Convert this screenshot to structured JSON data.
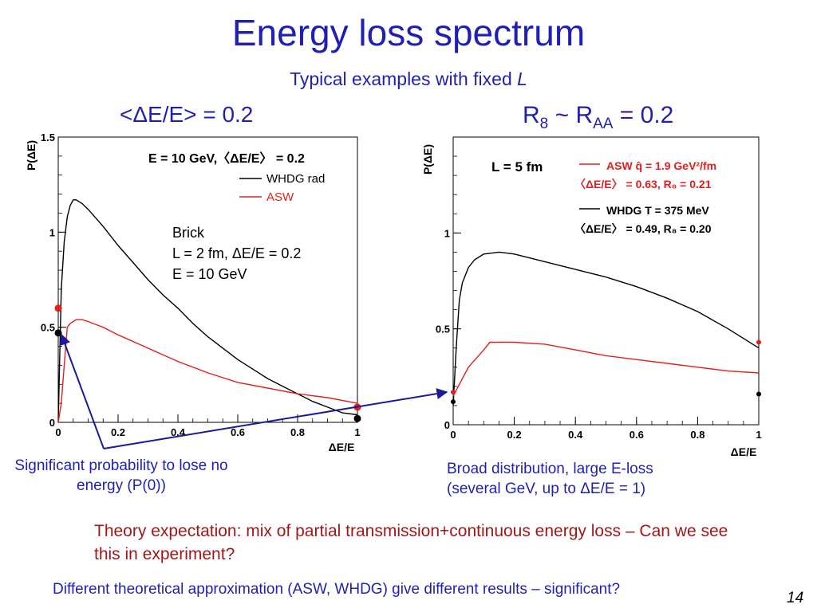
{
  "slide": {
    "title": "Energy loss spectrum",
    "subtitle_text": "Typical examples with fixed ",
    "subtitle_italic": "L",
    "left_heading": "<ΔE/E> = 0.2",
    "right_heading_parts": {
      "r": "R",
      "r_sub": "8",
      "tilde": " ~ R",
      "raa_sub": "AA",
      "value": " = 0.2"
    },
    "caption_left": "Significant probability to lose no energy (P(0))",
    "caption_right_line1": "Broad distribution, large E-loss",
    "caption_right_line2": "(several GeV, up to ΔE/E = 1)",
    "theory_text": "Theory expectation: mix of partial transmission+continuous energy loss – Can we see this in experiment?",
    "footer_text": "Different theoretical approximation (ASW, WHDG) give different results – significant?",
    "page_number": "14"
  },
  "colors": {
    "text_blue": "#1f1fb4",
    "theory_red": "#a01818",
    "whdg": "#000000",
    "asw": "#e02020",
    "arrow": "#1a1a9a"
  },
  "chart_data": [
    {
      "type": "line",
      "xlabel": "ΔE/E",
      "ylabel": "P(ΔE)",
      "xlim": [
        0,
        1
      ],
      "ylim": [
        0,
        1.5
      ],
      "x_ticks": [
        "0",
        "0.2",
        "0.4",
        "0.6",
        "0.8",
        "1"
      ],
      "y_ticks": [
        "0",
        "0.5",
        "1",
        "1.5"
      ],
      "legend_header": "E = 10 GeV,〈ΔE/E〉 = 0.2",
      "annotation": [
        "Brick",
        "L = 2 fm, ΔE/E = 0.2",
        "E = 10 GeV"
      ],
      "series": [
        {
          "name": "WHDG rad",
          "color": "#000000",
          "x": [
            0.0,
            0.01,
            0.02,
            0.03,
            0.04,
            0.05,
            0.06,
            0.08,
            0.1,
            0.15,
            0.2,
            0.25,
            0.3,
            0.35,
            0.4,
            0.45,
            0.5,
            0.55,
            0.6,
            0.65,
            0.7,
            0.75,
            0.8,
            0.85,
            0.9,
            0.95,
            1.0
          ],
          "y": [
            0.0,
            0.7,
            0.95,
            1.08,
            1.14,
            1.17,
            1.17,
            1.15,
            1.12,
            1.03,
            0.93,
            0.84,
            0.75,
            0.67,
            0.6,
            0.52,
            0.45,
            0.39,
            0.33,
            0.28,
            0.23,
            0.19,
            0.15,
            0.11,
            0.08,
            0.05,
            0.04
          ],
          "endpoints": {
            "x0": 0.0,
            "y0": 0.47,
            "x1": 1.0,
            "y1": 0.02
          }
        },
        {
          "name": "ASW",
          "color": "#e02020",
          "x": [
            0.0,
            0.01,
            0.02,
            0.03,
            0.04,
            0.05,
            0.06,
            0.08,
            0.1,
            0.15,
            0.2,
            0.3,
            0.4,
            0.5,
            0.6,
            0.7,
            0.8,
            0.9,
            1.0
          ],
          "y": [
            0.0,
            0.1,
            0.3,
            0.5,
            0.52,
            0.53,
            0.54,
            0.54,
            0.53,
            0.5,
            0.46,
            0.39,
            0.32,
            0.26,
            0.21,
            0.18,
            0.15,
            0.13,
            0.1
          ],
          "endpoints": {
            "x0": 0.0,
            "y0": 0.6,
            "x1": 1.0,
            "y1": 0.08
          }
        }
      ]
    },
    {
      "type": "line",
      "xlabel": "ΔE/E",
      "ylabel": "P(ΔE)",
      "xlim": [
        0,
        1
      ],
      "ylim": [
        0,
        1.5
      ],
      "x_ticks": [
        "0",
        "0.2",
        "0.4",
        "0.6",
        "0.8",
        "1"
      ],
      "y_ticks": [
        "0",
        "0.5",
        "1"
      ],
      "annotation": [
        "L = 5 fm"
      ],
      "legend": [
        {
          "label": "ASW q̂ = 1.9 GeV²/fm",
          "sub": "〈ΔE/E〉 = 0.63, R₈ = 0.21",
          "color": "#e02020"
        },
        {
          "label": "WHDG T = 375 MeV",
          "sub": "〈ΔE/E〉 = 0.49, R₈ = 0.20",
          "color": "#000000"
        }
      ],
      "series": [
        {
          "name": "WHDG",
          "color": "#000000",
          "x": [
            0.0,
            0.01,
            0.02,
            0.03,
            0.05,
            0.07,
            0.1,
            0.15,
            0.2,
            0.3,
            0.4,
            0.5,
            0.6,
            0.7,
            0.8,
            0.9,
            1.0
          ],
          "y": [
            0.1,
            0.4,
            0.65,
            0.74,
            0.82,
            0.86,
            0.89,
            0.9,
            0.89,
            0.85,
            0.81,
            0.77,
            0.72,
            0.66,
            0.59,
            0.5,
            0.4
          ],
          "endpoints": {
            "x0": 0.0,
            "y0": 0.12,
            "x1": 1.0,
            "y1": 0.16
          }
        },
        {
          "name": "ASW",
          "color": "#e02020",
          "x": [
            0.0,
            0.05,
            0.1,
            0.12,
            0.2,
            0.3,
            0.4,
            0.5,
            0.6,
            0.7,
            0.8,
            0.9,
            1.0
          ],
          "y": [
            0.15,
            0.3,
            0.39,
            0.43,
            0.43,
            0.42,
            0.39,
            0.36,
            0.34,
            0.32,
            0.3,
            0.28,
            0.27
          ],
          "endpoints": {
            "x0": 0.0,
            "y0": 0.17,
            "x1": 1.0,
            "y1": 0.43
          }
        }
      ]
    }
  ]
}
